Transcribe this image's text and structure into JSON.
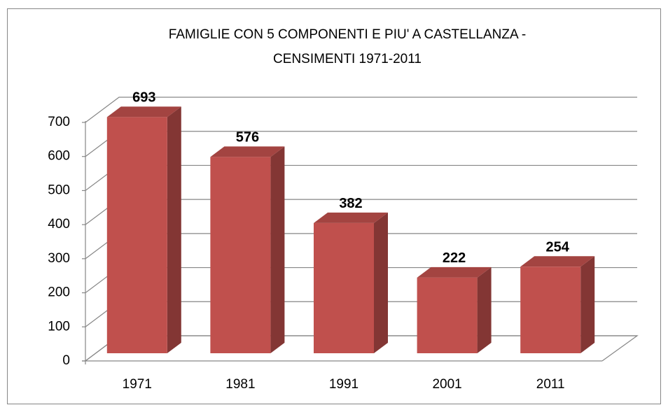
{
  "chart_data": {
    "type": "bar3d",
    "title": [
      "FAMIGLIE CON 5 COMPONENTI E PIU' A CASTELLANZA -",
      "CENSIMENTI 1971-2011"
    ],
    "categories": [
      "1971",
      "1981",
      "1991",
      "2001",
      "2011"
    ],
    "values": [
      693,
      576,
      382,
      222,
      254
    ],
    "color": "#c0504d",
    "ylim": [
      0,
      700
    ],
    "yticks": [
      0,
      100,
      200,
      300,
      400,
      500,
      600,
      700
    ],
    "grid": true
  }
}
